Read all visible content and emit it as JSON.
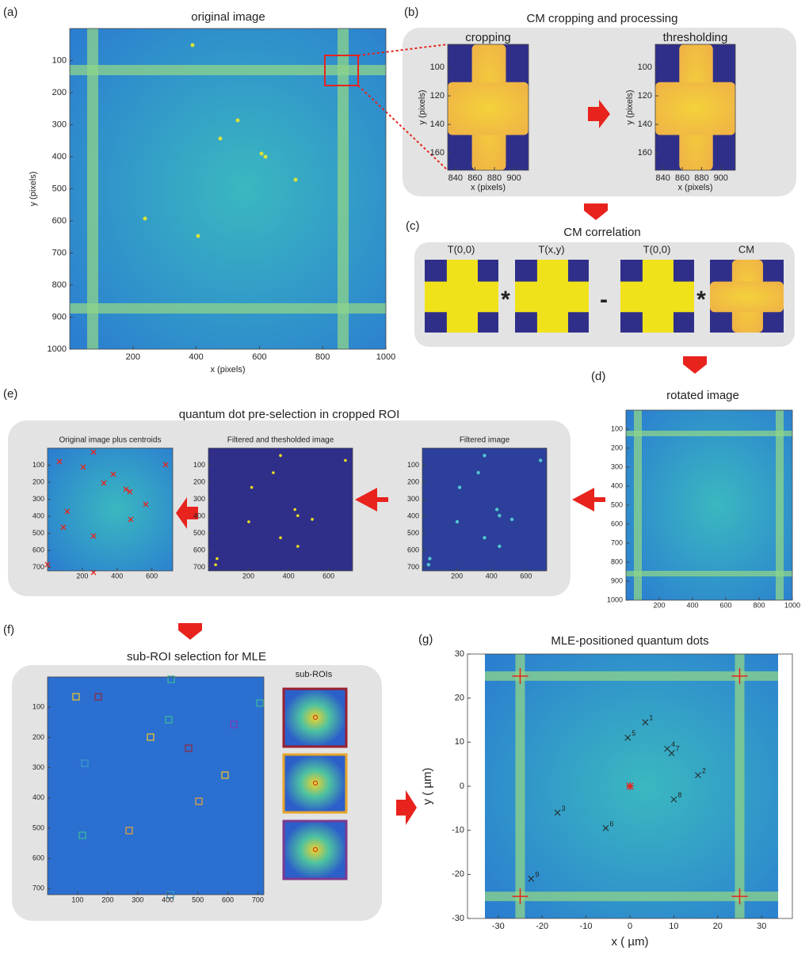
{
  "a": {
    "label": "(a)",
    "title": "original image",
    "xlabel": "x (pixels)",
    "ylabel": "y (pixels)",
    "xlim": [
      0,
      1000
    ],
    "ylim": [
      1000,
      0
    ],
    "xticks": [
      200,
      400,
      600,
      800,
      1000
    ],
    "yticks": [
      100,
      200,
      300,
      400,
      500,
      600,
      700,
      800,
      900,
      1000
    ]
  },
  "b": {
    "label": "(b)",
    "title": "CM cropping and processing",
    "plots": [
      {
        "title": "cropping",
        "xlabel": "x (pixels)",
        "ylabel": "y (pixels)",
        "xlim": [
          832,
          915
        ],
        "ylim": [
          172,
          84
        ],
        "xticks": [
          840,
          860,
          880,
          900
        ],
        "yticks": [
          100,
          120,
          140,
          160
        ]
      },
      {
        "title": "thresholding",
        "xlabel": "x (pixels)",
        "ylabel": "y (pixels)",
        "xlim": [
          832,
          915
        ],
        "ylim": [
          172,
          84
        ],
        "xticks": [
          840,
          860,
          880,
          900
        ],
        "yticks": [
          100,
          120,
          140,
          160
        ]
      }
    ]
  },
  "c": {
    "label": "(c)",
    "title": "CM correlation",
    "terms": [
      "T(0,0)",
      "T(x,y)",
      "T(0,0)",
      "CM"
    ],
    "operators": [
      "*",
      "-",
      "*"
    ]
  },
  "d": {
    "label": "(d)",
    "title": "rotated image",
    "xlim": [
      0,
      1000
    ],
    "ylim": [
      1000,
      0
    ],
    "xticks": [
      200,
      400,
      600,
      800,
      1000
    ],
    "yticks": [
      100,
      200,
      300,
      400,
      500,
      600,
      700,
      800,
      900,
      1000
    ]
  },
  "e": {
    "label": "(e)",
    "title": "quantum dot pre-selection in cropped ROI",
    "plots": [
      {
        "title": "Original image plus centroids",
        "xlim": [
          0,
          720
        ],
        "ylim": [
          720,
          0
        ],
        "xticks": [
          200,
          400,
          600
        ],
        "yticks": [
          100,
          200,
          300,
          400,
          500,
          600,
          700
        ]
      },
      {
        "title": "Filtered and thesholded image",
        "xlim": [
          0,
          720
        ],
        "ylim": [
          720,
          0
        ],
        "xticks": [
          200,
          400,
          600
        ],
        "yticks": [
          100,
          200,
          300,
          400,
          500,
          600,
          700
        ]
      },
      {
        "title": "Filtered image",
        "xlim": [
          0,
          720
        ],
        "ylim": [
          720,
          0
        ],
        "xticks": [
          200,
          400,
          600
        ],
        "yticks": [
          100,
          200,
          300,
          400,
          500,
          600,
          700
        ]
      }
    ]
  },
  "f": {
    "label": "(f)",
    "title": "sub-ROI selection for MLE",
    "inset_title": "sub-ROIs",
    "xlim": [
      0,
      720
    ],
    "ylim": [
      720,
      0
    ],
    "xticks": [
      100,
      200,
      300,
      400,
      500,
      600,
      700
    ],
    "yticks": [
      100,
      200,
      300,
      400,
      500,
      600,
      700
    ]
  },
  "g": {
    "label": "(g)",
    "title": "MLE-positioned quantum dots",
    "xlabel": "x ( µm)",
    "ylabel": "y ( µm)",
    "xlim": [
      -37,
      37
    ],
    "ylim": [
      -30,
      30
    ],
    "xticks": [
      -30,
      -20,
      -10,
      0,
      10,
      20,
      30
    ],
    "yticks": [
      -30,
      -20,
      -10,
      0,
      10,
      20,
      30
    ],
    "dots": {
      "labels": [
        "1",
        "2",
        "3",
        "4",
        "5",
        "6",
        "7",
        "8",
        "9"
      ],
      "x": [
        3.5,
        15.5,
        -16.5,
        8.5,
        -0.5,
        -5.5,
        9.5,
        10,
        -22.5
      ],
      "y": [
        14.5,
        2.5,
        -6,
        8.5,
        11,
        -9.5,
        7.5,
        -3,
        -21
      ]
    },
    "markers": {
      "x": [
        -25,
        25,
        -25,
        25
      ],
      "y": [
        25,
        25,
        -25,
        -25
      ]
    },
    "center": {
      "x": 0,
      "y": 0
    }
  }
}
